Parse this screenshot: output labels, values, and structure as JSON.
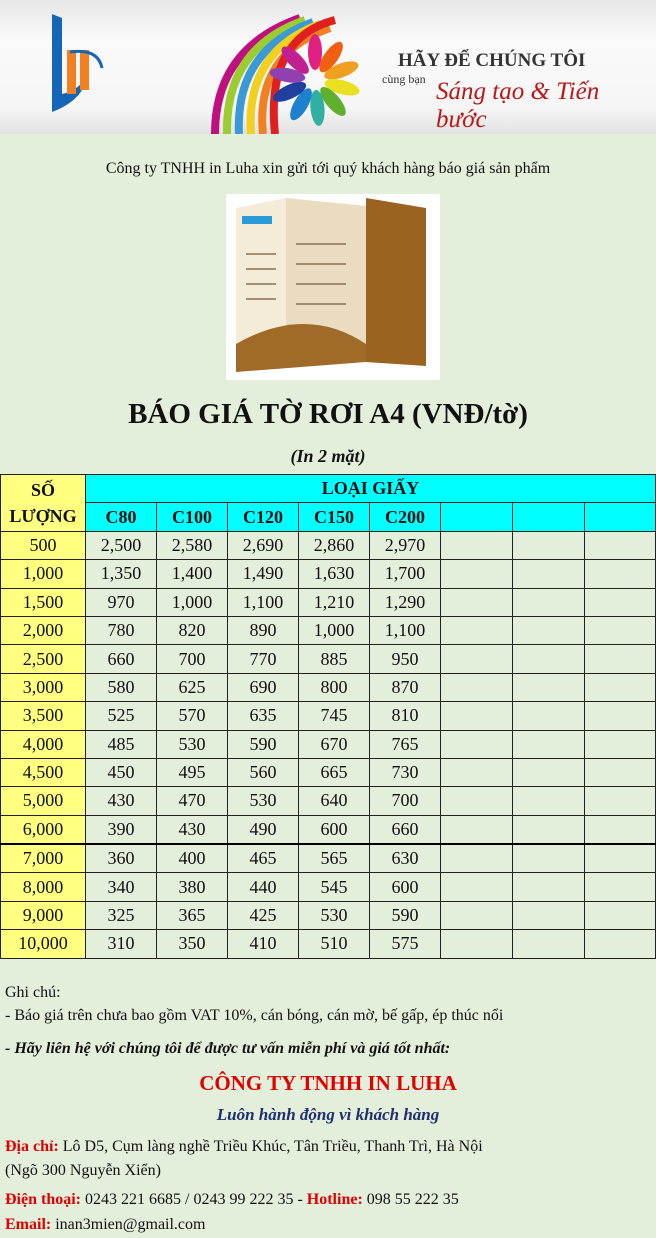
{
  "banner": {
    "headline": "HÃY ĐỂ CHÚNG TÔI",
    "tagline_prefix": "cùng bạn",
    "tagline_script": "Sáng tạo & Tiến bước"
  },
  "intro": "Công ty TNHH in Luha xin gửi tới quý khách hàng báo giá sản phẩm",
  "title": "BÁO GIÁ TỜ RƠI A4 (VNĐ/tờ)",
  "subtitle": "(In 2 mặt)",
  "table": {
    "qty_header": "SỐ LƯỢNG",
    "paper_header": "LOẠI GIẤY",
    "columns": [
      "C80",
      "C100",
      "C120",
      "C150",
      "C200",
      "",
      "",
      ""
    ],
    "rows": [
      {
        "qty": "500",
        "prices": [
          "2,500",
          "2,580",
          "2,690",
          "2,860",
          "2,970"
        ]
      },
      {
        "qty": "1,000",
        "prices": [
          "1,350",
          "1,400",
          "1,490",
          "1,630",
          "1,700"
        ]
      },
      {
        "qty": "1,500",
        "prices": [
          "970",
          "1,000",
          "1,100",
          "1,210",
          "1,290"
        ]
      },
      {
        "qty": "2,000",
        "prices": [
          "780",
          "820",
          "890",
          "1,000",
          "1,100"
        ]
      },
      {
        "qty": "2,500",
        "prices": [
          "660",
          "700",
          "770",
          "885",
          "950"
        ]
      },
      {
        "qty": "3,000",
        "prices": [
          "580",
          "625",
          "690",
          "800",
          "870"
        ]
      },
      {
        "qty": "3,500",
        "prices": [
          "525",
          "570",
          "635",
          "745",
          "810"
        ]
      },
      {
        "qty": "4,000",
        "prices": [
          "485",
          "530",
          "590",
          "670",
          "765"
        ]
      },
      {
        "qty": "4,500",
        "prices": [
          "450",
          "495",
          "560",
          "665",
          "730"
        ]
      },
      {
        "qty": "5,000",
        "prices": [
          "430",
          "470",
          "530",
          "640",
          "700"
        ]
      },
      {
        "qty": "6,000",
        "prices": [
          "390",
          "430",
          "490",
          "600",
          "660"
        ]
      },
      {
        "qty": "7,000",
        "prices": [
          "360",
          "400",
          "465",
          "565",
          "630"
        ]
      },
      {
        "qty": "8,000",
        "prices": [
          "340",
          "380",
          "440",
          "545",
          "600"
        ]
      },
      {
        "qty": "9,000",
        "prices": [
          "325",
          "365",
          "425",
          "530",
          "590"
        ]
      },
      {
        "qty": "10,000",
        "prices": [
          "310",
          "350",
          "410",
          "510",
          "575"
        ]
      }
    ]
  },
  "notes": {
    "label": "Ghi chú:",
    "line1": "- Báo giá trên chưa bao gồm VAT 10%, cán bóng, cán mờ, bế gấp, ép thúc nổi",
    "cta": "- Hãy liên hệ với chúng tôi để được tư vấn miễn phí và giá tốt nhất:"
  },
  "company": {
    "name": "CÔNG TY TNHH IN LUHA",
    "slogan": "Luôn hành động vì khách hàng",
    "address_label": "Địa chỉ:",
    "address": " Lô D5, Cụm làng nghề Triều Khúc, Tân Triều, Thanh Trì, Hà Nội",
    "address2": "(Ngõ 300 Nguyễn Xiển)",
    "phone_label": "Điện thoại:",
    "phone": " 0243 221 6685 / 0243 99 222 35  - ",
    "hotline_label": "Hotline:",
    "hotline": " 098 55 222 35",
    "email_label": "Email:",
    "email": " inan3mien@gmail.com"
  },
  "colors": {
    "background": "#e3eedb",
    "header_cyan": "#00ffff",
    "qty_yellow": "#ffff80",
    "accent_red": "#e00000",
    "slogan_blue": "#1f2f6f"
  }
}
